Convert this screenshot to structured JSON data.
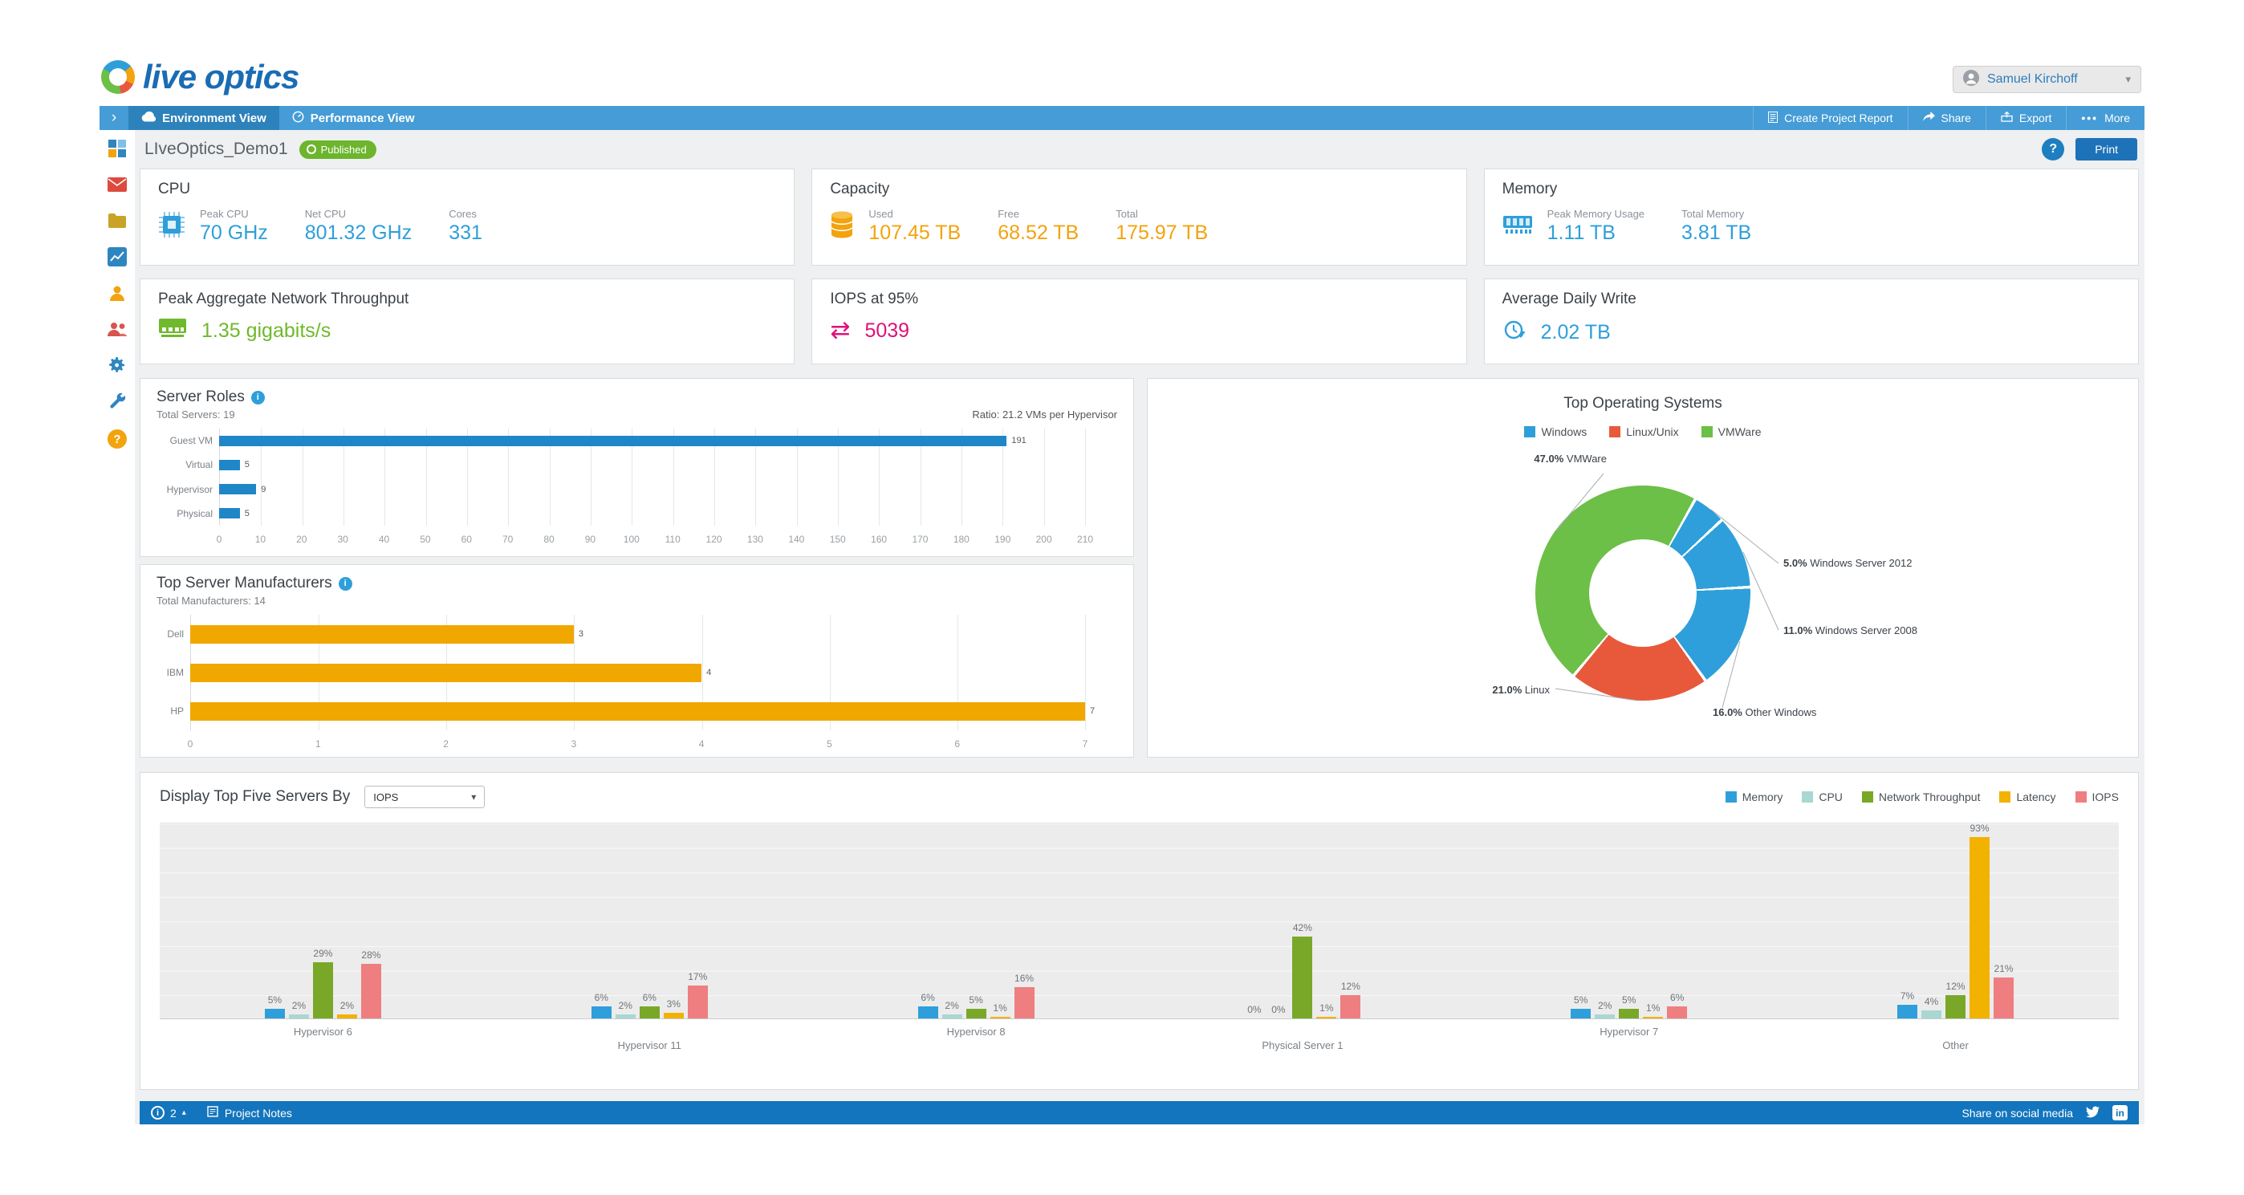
{
  "brand": {
    "logo_text": "live optics"
  },
  "header": {
    "user_name": "Samuel Kirchoff"
  },
  "nav": {
    "collapse_chevron": "›",
    "tabs": [
      {
        "label": "Environment View",
        "icon": "cloud-icon",
        "active": true
      },
      {
        "label": "Performance View",
        "icon": "gauge-icon",
        "active": false
      }
    ],
    "actions": [
      {
        "label": "Create Project Report",
        "icon": "report-icon"
      },
      {
        "label": "Share",
        "icon": "share-icon"
      },
      {
        "label": "Export",
        "icon": "export-icon"
      },
      {
        "label": "More",
        "dots": "•••"
      }
    ]
  },
  "sidebar": {
    "items": [
      "dashboard-icon",
      "mail-icon",
      "folder-icon",
      "chart-icon",
      "user-icon",
      "group-icon",
      "settings-icon",
      "tools-icon",
      "help-icon"
    ]
  },
  "page": {
    "title": "LIveOptics_Demo1",
    "status_badge": "Published",
    "help_button": "?",
    "print_button": "Print"
  },
  "summary_cards": {
    "cpu": {
      "title": "CPU",
      "metrics": [
        {
          "label": "Peak CPU",
          "value": "70 GHz"
        },
        {
          "label": "Net CPU",
          "value": "801.32 GHz"
        },
        {
          "label": "Cores",
          "value": "331"
        }
      ]
    },
    "capacity": {
      "title": "Capacity",
      "metrics": [
        {
          "label": "Used",
          "value": "107.45 TB"
        },
        {
          "label": "Free",
          "value": "68.52 TB"
        },
        {
          "label": "Total",
          "value": "175.97 TB"
        }
      ]
    },
    "memory": {
      "title": "Memory",
      "metrics": [
        {
          "label": "Peak Memory Usage",
          "value": "1.11 TB"
        },
        {
          "label": "Total Memory",
          "value": "3.81 TB"
        }
      ]
    },
    "network": {
      "title": "Peak Aggregate Network Throughput",
      "value": "1.35 gigabits/s",
      "color": "#6fb92c"
    },
    "iops": {
      "title": "IOPS at 95%",
      "value": "5039",
      "color": "#e0107a"
    },
    "daily_write": {
      "title": "Average Daily Write",
      "value": "2.02 TB",
      "color": "#2e9fda"
    }
  },
  "chart_data": [
    {
      "id": "server_roles",
      "type": "bar",
      "orientation": "horizontal",
      "title": "Server Roles",
      "subtitle": "Total Servers: 19",
      "annotation": "Ratio: 21.2 VMs per Hypervisor",
      "categories": [
        "Guest VM",
        "Virtual",
        "Hypervisor",
        "Physical"
      ],
      "values": [
        191,
        5,
        9,
        5
      ],
      "xlim": [
        0,
        210
      ],
      "ticks": [
        0,
        10,
        20,
        30,
        40,
        50,
        60,
        70,
        80,
        90,
        100,
        110,
        120,
        130,
        140,
        150,
        160,
        170,
        180,
        190,
        200,
        210
      ],
      "bar_color": "#1f86c8",
      "grid": true
    },
    {
      "id": "top_server_manufacturers",
      "type": "bar",
      "orientation": "horizontal",
      "title": "Top Server Manufacturers",
      "subtitle": "Total Manufacturers: 14",
      "categories": [
        "Dell",
        "IBM",
        "HP"
      ],
      "values": [
        3,
        4,
        7
      ],
      "xlim": [
        0,
        7
      ],
      "ticks": [
        0,
        1,
        2,
        3,
        4,
        5,
        6,
        7
      ],
      "bar_color": "#f0a700",
      "grid": true
    },
    {
      "id": "top_operating_systems",
      "type": "pie",
      "donut": true,
      "title": "Top Operating Systems",
      "legend": [
        {
          "label": "Windows",
          "color": "#2e9fda"
        },
        {
          "label": "Linux/Unix",
          "color": "#e8593b"
        },
        {
          "label": "VMWare",
          "color": "#6cbf47"
        }
      ],
      "slices": [
        {
          "label": "Windows Server 2012",
          "pct": 5.0,
          "color": "#2e9fda"
        },
        {
          "label": "Windows Server 2008",
          "pct": 11.0,
          "color": "#2e9fda"
        },
        {
          "label": "Other Windows",
          "pct": 16.0,
          "color": "#2e9fda"
        },
        {
          "label": "Linux",
          "pct": 21.0,
          "color": "#e8593b"
        },
        {
          "label": "VMWare",
          "pct": 47.0,
          "color": "#6cbf47"
        }
      ]
    },
    {
      "id": "top_five_servers",
      "type": "bar",
      "title": "Display Top Five Servers By",
      "selector": {
        "value": "IOPS"
      },
      "unit": "%",
      "ylim": [
        0,
        100
      ],
      "grid": true,
      "categories": [
        "Hypervisor 6",
        "Hypervisor 11",
        "Hypervisor 8",
        "Physical Server 1",
        "Hypervisor 7",
        "Other"
      ],
      "series": [
        {
          "name": "Memory",
          "color": "#2e9fda",
          "values": [
            5,
            6,
            6,
            0,
            5,
            7
          ]
        },
        {
          "name": "CPU",
          "color": "#a9d7d2",
          "values": [
            2,
            2,
            2,
            0,
            2,
            4
          ]
        },
        {
          "name": "Network Throughput",
          "color": "#79a829",
          "values": [
            29,
            6,
            5,
            42,
            5,
            12
          ]
        },
        {
          "name": "Latency",
          "color": "#f2b200",
          "values": [
            2,
            3,
            1,
            1,
            1,
            93
          ]
        },
        {
          "name": "IOPS",
          "color": "#ee7e80",
          "values": [
            28,
            17,
            16,
            12,
            6,
            21
          ]
        }
      ]
    }
  ],
  "footer": {
    "notification_count": "2",
    "project_notes_label": "Project Notes",
    "share_label": "Share on social media"
  }
}
